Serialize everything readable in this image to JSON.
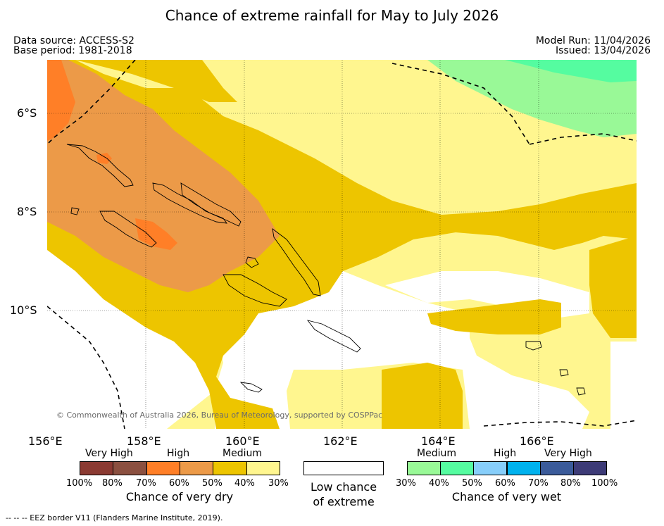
{
  "title": "Chance of extreme rainfall for May to July 2026",
  "meta": {
    "data_source": "Data source: ACCESS-S2",
    "base_period": "Base period: 1981-2018",
    "model_run": "Model Run: 11/04/2026",
    "issued": "Issued: 13/04/2026"
  },
  "axes": {
    "lat_labels": [
      "6°S",
      "8°S",
      "10°S"
    ],
    "lon_labels": [
      "156°E",
      "158°E",
      "160°E",
      "162°E",
      "164°E",
      "166°E"
    ]
  },
  "copyright": "© Commonwealth of Australia 2026, Bureau of Meteorology, supported by COSPPac",
  "legend": {
    "dry": {
      "categories": [
        "Very High",
        "High",
        "Medium"
      ],
      "percentages": [
        "100%",
        "80%",
        "70%",
        "60%",
        "50%",
        "40%",
        "30%"
      ],
      "colors": [
        "#8b3a32",
        "#8b5040",
        "#ff7f27",
        "#ec9a48",
        "#edc500",
        "#fff68f"
      ],
      "caption": "Chance of very dry"
    },
    "low": {
      "caption_line1": "Low chance",
      "caption_line2": "of extreme"
    },
    "wet": {
      "categories": [
        "Medium",
        "High",
        "Very High"
      ],
      "percentages": [
        "30%",
        "40%",
        "50%",
        "60%",
        "70%",
        "80%",
        "100%"
      ],
      "colors": [
        "#99f997",
        "#55fca0",
        "#87cefa",
        "#00b2ee",
        "#3b5b9a",
        "#3d3b77"
      ],
      "caption": "Chance of very wet"
    }
  },
  "footnote": "--  --  -- EEZ border V11 (Flanders Marine Institute, 2019)."
}
